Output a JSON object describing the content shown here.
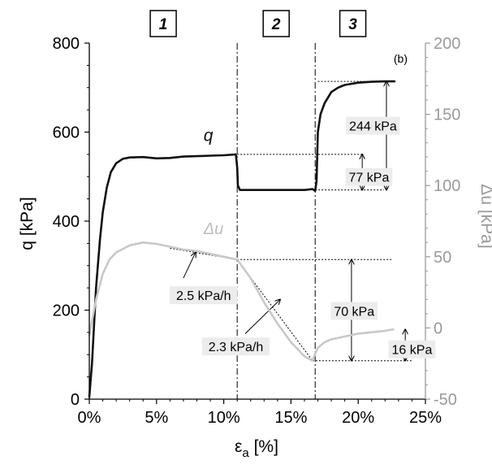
{
  "chart_data": {
    "type": "line",
    "panel_label": "(b)",
    "xlabel_main": "ε",
    "xlabel_sub": "a",
    "xlabel_unit": " [%]",
    "ylabel": "q [kPa]",
    "y2label": "Δu [kPa]",
    "xlim": [
      0,
      25
    ],
    "ylim": [
      0,
      800
    ],
    "y2lim": [
      -50,
      200
    ],
    "x_ticks": [
      "0%",
      "5%",
      "10%",
      "15%",
      "20%",
      "25%"
    ],
    "y_ticks": [
      "0",
      "200",
      "400",
      "600",
      "800"
    ],
    "y2_ticks": [
      "-50",
      "0",
      "50",
      "100",
      "150",
      "200"
    ],
    "stages": [
      {
        "label": "1",
        "x_center": 5.5
      },
      {
        "label": "2",
        "x_center": 13.9
      },
      {
        "label": "3",
        "x_center": 19.6
      }
    ],
    "stage_boundaries": [
      11.0,
      16.8
    ],
    "series": [
      {
        "name": "q",
        "axis": "left",
        "color": "#111111",
        "points": [
          [
            0,
            5
          ],
          [
            0.2,
            80
          ],
          [
            0.5,
            250
          ],
          [
            0.8,
            360
          ],
          [
            1.0,
            420
          ],
          [
            1.3,
            475
          ],
          [
            1.6,
            510
          ],
          [
            2.0,
            530
          ],
          [
            2.5,
            540
          ],
          [
            3.0,
            543
          ],
          [
            4.0,
            544
          ],
          [
            5.0,
            541
          ],
          [
            6.0,
            542
          ],
          [
            7.0,
            545
          ],
          [
            8.0,
            546
          ],
          [
            9.0,
            547
          ],
          [
            10.0,
            548
          ],
          [
            10.9,
            550
          ],
          [
            11.0,
            520
          ],
          [
            11.05,
            480
          ],
          [
            11.2,
            470
          ],
          [
            12.0,
            470
          ],
          [
            14.0,
            470
          ],
          [
            16.0,
            470
          ],
          [
            16.6,
            472
          ],
          [
            16.8,
            468
          ],
          [
            16.9,
            490
          ],
          [
            17.0,
            600
          ],
          [
            17.2,
            640
          ],
          [
            17.5,
            665
          ],
          [
            18.0,
            690
          ],
          [
            18.5,
            700
          ],
          [
            19.0,
            706
          ],
          [
            20.0,
            711
          ],
          [
            21.0,
            713
          ],
          [
            22.0,
            714
          ],
          [
            22.7,
            714
          ]
        ]
      },
      {
        "name": "Δu",
        "axis": "right",
        "color": "#c8c8c8",
        "points": [
          [
            0,
            -5
          ],
          [
            0.2,
            5
          ],
          [
            0.5,
            20
          ],
          [
            1.0,
            38
          ],
          [
            1.5,
            48
          ],
          [
            2.0,
            53
          ],
          [
            3.0,
            58
          ],
          [
            4.0,
            60
          ],
          [
            5.0,
            59
          ],
          [
            6.0,
            57
          ],
          [
            7.0,
            55
          ],
          [
            8.0,
            54
          ],
          [
            9.0,
            52
          ],
          [
            10.0,
            50
          ],
          [
            11.0,
            48
          ],
          [
            12.0,
            35
          ],
          [
            13.0,
            18
          ],
          [
            14.0,
            3
          ],
          [
            15.0,
            -10
          ],
          [
            16.0,
            -20
          ],
          [
            16.6,
            -23
          ],
          [
            16.8,
            -18
          ],
          [
            17.0,
            -14
          ],
          [
            17.5,
            -10
          ],
          [
            18.0,
            -8
          ],
          [
            19.0,
            -6
          ],
          [
            20.0,
            -4
          ],
          [
            21.0,
            -3
          ],
          [
            22.0,
            -2
          ],
          [
            22.6,
            -1
          ]
        ]
      }
    ],
    "series_labels": [
      {
        "text": "q",
        "x": 8.5,
        "y": 580,
        "axis": "left"
      },
      {
        "text": "Δu",
        "x": 8.5,
        "y": 66,
        "axis": "right"
      }
    ],
    "annotations": [
      {
        "text": "244 kPa",
        "x": 21.1,
        "y": 142,
        "axis": "right"
      },
      {
        "text": "77 kPa",
        "x": 20.8,
        "y": 106,
        "axis": "right"
      },
      {
        "text": "70 kPa",
        "x": 19.7,
        "y": 12,
        "axis": "right"
      },
      {
        "text": "16 kPa",
        "x": 24.0,
        "y": -15,
        "axis": "right"
      },
      {
        "text": "2.5 kPa/h",
        "x": 8.5,
        "y": 23,
        "axis": "right"
      },
      {
        "text": "2.3 kPa/h",
        "x": 10.9,
        "y": -13,
        "axis": "right"
      }
    ]
  }
}
